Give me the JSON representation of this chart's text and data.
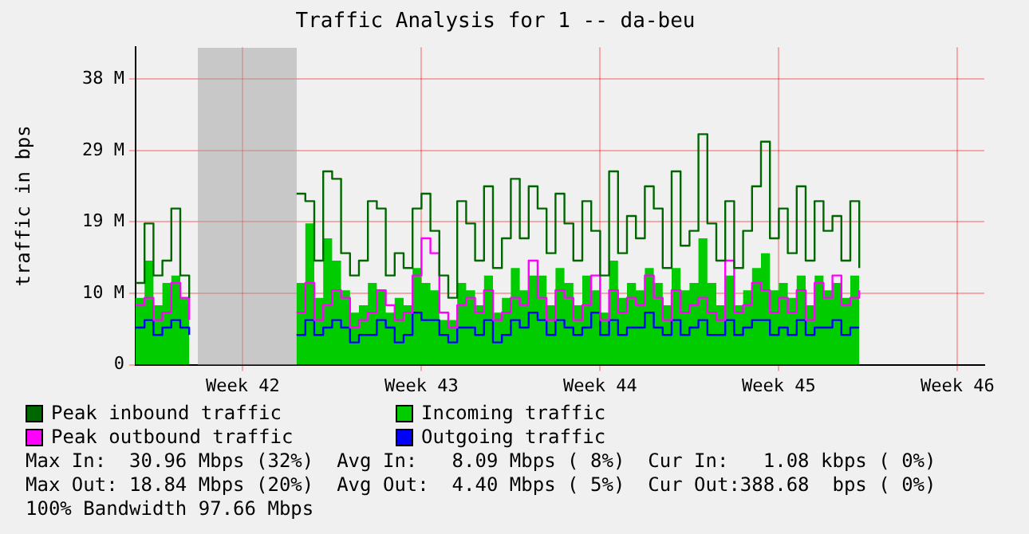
{
  "chart_data": {
    "type": "step",
    "title": "Traffic Analysis for 1 -- da-beu",
    "ylabel": "traffic in bps",
    "categories": [
      null,
      null,
      null,
      null,
      null,
      null,
      null,
      null,
      null,
      null,
      null,
      null,
      "Week 42",
      null,
      null,
      null,
      null,
      null,
      null,
      null,
      null,
      null,
      null,
      null,
      null,
      null,
      null,
      null,
      null,
      null,
      null,
      null,
      "Week 43",
      null,
      null,
      null,
      null,
      null,
      null,
      null,
      null,
      null,
      null,
      null,
      null,
      null,
      null,
      null,
      null,
      null,
      null,
      null,
      "Week 44",
      null,
      null,
      null,
      null,
      null,
      null,
      null,
      null,
      null,
      null,
      null,
      null,
      null,
      null,
      null,
      null,
      null,
      null,
      null,
      "Week 45",
      null,
      null,
      null,
      null,
      null,
      null,
      null,
      null,
      null,
      null,
      null,
      null,
      null,
      null,
      null,
      null,
      null,
      null,
      null,
      "Week 46",
      null,
      null,
      null
    ],
    "series": [
      {
        "name": "Peak inbound traffic",
        "color": "#006600",
        "values": [
          11,
          19,
          12,
          14,
          21,
          12,
          9,
          null,
          null,
          null,
          null,
          null,
          null,
          null,
          null,
          null,
          null,
          null,
          23,
          22,
          14,
          26,
          25,
          15,
          12,
          14,
          22,
          21,
          12,
          15,
          13,
          21,
          23,
          18,
          12,
          9,
          22,
          19,
          14,
          24,
          13,
          17,
          25,
          17,
          24,
          21,
          15,
          23,
          19,
          14,
          22,
          18,
          12,
          26,
          15,
          20,
          17,
          24,
          21,
          13,
          26,
          16,
          18,
          31,
          19,
          14,
          22,
          13,
          18,
          24,
          30,
          17,
          21,
          15,
          24,
          14,
          22,
          18,
          20,
          14,
          22,
          13,
          null,
          null,
          null,
          null,
          null,
          null,
          null,
          null,
          null,
          null,
          null,
          null,
          null,
          null
        ]
      },
      {
        "name": "Incoming traffic",
        "type": "area",
        "color": "#00cc00",
        "values": [
          9,
          14,
          8,
          11,
          12,
          9,
          7,
          null,
          null,
          null,
          null,
          null,
          null,
          null,
          null,
          null,
          null,
          null,
          11,
          19,
          9,
          17,
          14,
          10,
          7,
          8,
          11,
          10,
          7,
          9,
          8,
          13,
          11,
          10,
          6,
          6,
          11,
          10,
          8,
          12,
          7,
          9,
          13,
          10,
          12,
          12,
          8,
          13,
          11,
          8,
          12,
          10,
          7,
          14,
          9,
          11,
          10,
          13,
          11,
          8,
          13,
          10,
          11,
          17,
          11,
          8,
          12,
          8,
          10,
          13,
          15,
          10,
          11,
          9,
          12,
          8,
          12,
          10,
          11,
          9,
          12,
          9,
          null,
          null,
          null,
          null,
          null,
          null,
          null,
          null,
          null,
          null,
          null,
          null,
          null,
          null
        ]
      },
      {
        "name": "Peak outbound traffic",
        "color": "#ff00ff",
        "values": [
          8,
          9,
          6,
          7,
          11,
          9,
          6,
          null,
          null,
          null,
          null,
          null,
          null,
          null,
          null,
          null,
          null,
          null,
          7,
          11,
          6,
          8,
          10,
          9,
          5,
          6,
          7,
          10,
          8,
          6,
          7,
          12,
          17,
          15,
          7,
          5,
          8,
          9,
          7,
          10,
          6,
          7,
          9,
          8,
          14,
          9,
          6,
          10,
          9,
          6,
          8,
          12,
          6,
          10,
          7,
          9,
          8,
          12,
          9,
          6,
          10,
          7,
          8,
          9,
          7,
          6,
          14,
          7,
          8,
          11,
          10,
          7,
          9,
          7,
          10,
          6,
          11,
          9,
          12,
          8,
          9,
          10,
          null,
          null,
          null,
          null,
          null,
          null,
          null,
          null,
          null,
          null,
          null,
          null,
          null,
          null
        ]
      },
      {
        "name": "Outgoing traffic",
        "color": "#0000ff",
        "values": [
          5,
          6,
          4,
          5,
          6,
          5,
          4,
          null,
          null,
          null,
          null,
          null,
          null,
          null,
          null,
          null,
          null,
          null,
          4,
          6,
          4,
          5,
          6,
          5,
          3,
          4,
          4,
          6,
          5,
          3,
          4,
          7,
          6,
          6,
          4,
          3,
          5,
          5,
          4,
          6,
          3,
          4,
          6,
          5,
          7,
          6,
          4,
          6,
          5,
          4,
          5,
          7,
          4,
          6,
          4,
          5,
          5,
          7,
          5,
          4,
          6,
          4,
          5,
          6,
          4,
          4,
          6,
          4,
          5,
          6,
          6,
          4,
          5,
          4,
          6,
          4,
          5,
          5,
          6,
          4,
          5,
          5,
          null,
          null,
          null,
          null,
          null,
          null,
          null,
          null,
          null,
          null,
          null,
          null,
          null,
          null
        ]
      }
    ],
    "ylim": [
      0,
      42.7
    ],
    "yticks": [
      0,
      {
        "value": 9.6,
        "label": "10 M"
      },
      {
        "value": 19.2,
        "label": "19 M"
      },
      {
        "value": 28.8,
        "label": "29 M"
      },
      {
        "value": 38.4,
        "label": "38 M"
      }
    ],
    "grid": true,
    "legend": "bottom",
    "marker": "none",
    "annotations": [
      "Max In:  30.96 Mbps (32%)  Avg In:   8.09 Mbps ( 8%)  Cur In:   1.08 kbps ( 0%)",
      "Max Out: 18.84 Mbps (20%)  Avg Out:  4.40 Mbps ( 5%)  Cur Out:388.68  bps ( 0%)",
      "100% Bandwidth 97.66 Mbps"
    ]
  }
}
